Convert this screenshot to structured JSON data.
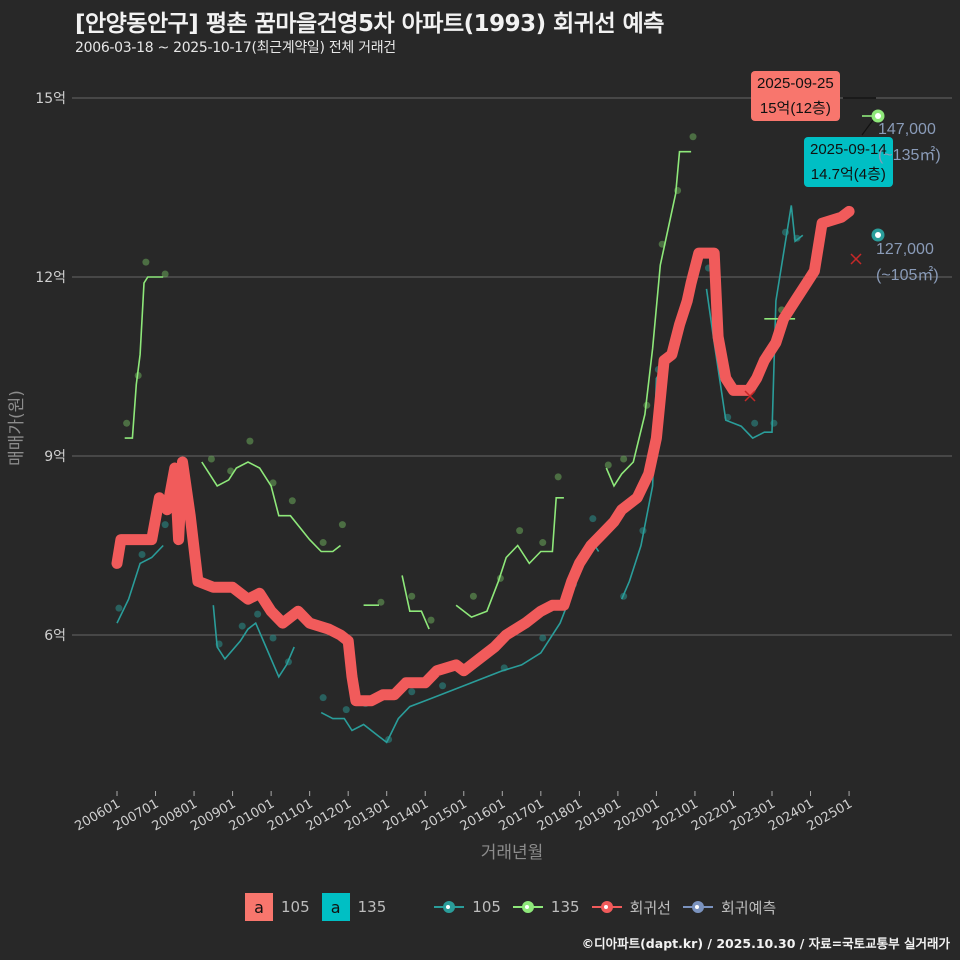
{
  "header": {
    "title": "[안양동안구] 평촌 꿈마을건영5차 아파트(1993) 회귀선 예측",
    "subtitle": "2006-03-18 ~ 2025-10-17(최근계약일) 전체 거래건"
  },
  "axes": {
    "y_title": "매매가(원)",
    "x_title": "거래년월",
    "y_ticks": [
      "15억",
      "12억",
      "9억",
      "6억"
    ],
    "x_ticks": [
      "200601",
      "200701",
      "200801",
      "200901",
      "201001",
      "201101",
      "201201",
      "201301",
      "201401",
      "201501",
      "201601",
      "201701",
      "201801",
      "201901",
      "202001",
      "202101",
      "202201",
      "202301",
      "202401",
      "202501"
    ]
  },
  "callouts": {
    "area105": {
      "date": "2025-09-25",
      "price": "15억(12층)",
      "color": "#f8766d"
    },
    "area135": {
      "date": "2025-09-14",
      "price": "14.7억(4층)",
      "color": "#00bfc4"
    }
  },
  "prediction_labels": {
    "p135": {
      "value": "147,000",
      "area": "(~135㎡)"
    },
    "p105": {
      "value": "127,000",
      "area": "(~105㎡)"
    }
  },
  "legend": {
    "fill": [
      {
        "key": "a",
        "label": "105",
        "color": "#f8766d"
      },
      {
        "key": "a",
        "label": "135",
        "color": "#00bfc4"
      }
    ],
    "lines": [
      {
        "label": "105",
        "color": "#2a9d9a"
      },
      {
        "label": "135",
        "color": "#8ee87a"
      },
      {
        "label": "회귀선",
        "color": "#f15b5b"
      },
      {
        "label": "회귀예측",
        "color": "#7b93bf"
      }
    ]
  },
  "footer": "©디아파트(dapt.kr) / 2025.10.30 / 자료=국토교통부 실거래가",
  "chart_data": {
    "type": "line",
    "title": "[안양동안구] 평촌 꿈마을건영5차 아파트(1993) 회귀선 예측",
    "subtitle": "2006-03-18 ~ 2025-10-17(최근계약일) 전체 거래건",
    "xlabel": "거래년월",
    "ylabel": "매매가(원)",
    "ylim_eok": [
      3.3,
      15.8
    ],
    "y_ticks_eok": [
      6,
      9,
      12,
      15
    ],
    "grid": true,
    "legend_position": "bottom",
    "series": [
      {
        "name": "회귀선",
        "color": "#f15b5b",
        "points_year_eok": [
          [
            2006.0,
            7.2
          ],
          [
            2006.1,
            7.6
          ],
          [
            2006.9,
            7.6
          ],
          [
            2007.1,
            8.3
          ],
          [
            2007.3,
            8.1
          ],
          [
            2007.5,
            8.8
          ],
          [
            2007.6,
            7.6
          ],
          [
            2007.7,
            8.9
          ],
          [
            2007.9,
            8.0
          ],
          [
            2008.1,
            6.9
          ],
          [
            2008.5,
            6.8
          ],
          [
            2009.0,
            6.8
          ],
          [
            2009.4,
            6.6
          ],
          [
            2009.7,
            6.7
          ],
          [
            2010.0,
            6.4
          ],
          [
            2010.3,
            6.2
          ],
          [
            2010.7,
            6.4
          ],
          [
            2011.0,
            6.2
          ],
          [
            2011.5,
            6.1
          ],
          [
            2011.8,
            6.0
          ],
          [
            2012.0,
            5.9
          ],
          [
            2012.1,
            5.3
          ],
          [
            2012.2,
            4.9
          ],
          [
            2012.6,
            4.9
          ],
          [
            2012.9,
            5.0
          ],
          [
            2013.2,
            5.0
          ],
          [
            2013.5,
            5.2
          ],
          [
            2014.0,
            5.2
          ],
          [
            2014.3,
            5.4
          ],
          [
            2014.8,
            5.5
          ],
          [
            2015.0,
            5.4
          ],
          [
            2015.4,
            5.6
          ],
          [
            2015.8,
            5.8
          ],
          [
            2016.1,
            6.0
          ],
          [
            2016.6,
            6.2
          ],
          [
            2017.0,
            6.4
          ],
          [
            2017.3,
            6.5
          ],
          [
            2017.6,
            6.5
          ],
          [
            2017.8,
            6.9
          ],
          [
            2018.0,
            7.2
          ],
          [
            2018.3,
            7.5
          ],
          [
            2018.6,
            7.7
          ],
          [
            2018.9,
            7.9
          ],
          [
            2019.1,
            8.1
          ],
          [
            2019.5,
            8.3
          ],
          [
            2019.8,
            8.7
          ],
          [
            2020.0,
            9.3
          ],
          [
            2020.2,
            10.6
          ],
          [
            2020.4,
            10.7
          ],
          [
            2020.6,
            11.2
          ],
          [
            2020.8,
            11.6
          ],
          [
            2020.9,
            11.9
          ],
          [
            2021.1,
            12.4
          ],
          [
            2021.5,
            12.4
          ],
          [
            2021.6,
            11.0
          ],
          [
            2021.8,
            10.3
          ],
          [
            2022.0,
            10.1
          ],
          [
            2022.4,
            10.1
          ],
          [
            2022.6,
            10.3
          ],
          [
            2022.8,
            10.6
          ],
          [
            2023.1,
            10.9
          ],
          [
            2023.3,
            11.3
          ],
          [
            2023.6,
            11.6
          ],
          [
            2023.9,
            11.9
          ],
          [
            2024.1,
            12.1
          ],
          [
            2024.3,
            12.9
          ],
          [
            2024.8,
            13.0
          ],
          [
            2025.0,
            13.1
          ]
        ]
      },
      {
        "name": "105 (moving avg)",
        "color": "#2a9d9a",
        "points_year_eok": [
          [
            2006.0,
            6.2
          ],
          [
            2006.3,
            6.6
          ],
          [
            2006.6,
            7.2
          ],
          [
            2006.9,
            7.3
          ],
          [
            2007.2,
            7.5
          ],
          [
            2008.5,
            6.5
          ],
          [
            2008.6,
            5.8
          ],
          [
            2008.8,
            5.6
          ],
          [
            2009.2,
            5.9
          ],
          [
            2009.4,
            6.1
          ],
          [
            2009.6,
            6.2
          ],
          [
            2009.8,
            5.9
          ],
          [
            2010.0,
            5.6
          ],
          [
            2010.2,
            5.3
          ],
          [
            2010.4,
            5.5
          ],
          [
            2010.6,
            5.8
          ],
          [
            2011.3,
            4.7
          ],
          [
            2011.6,
            4.6
          ],
          [
            2011.9,
            4.6
          ],
          [
            2012.1,
            4.4
          ],
          [
            2012.4,
            4.5
          ],
          [
            2012.8,
            4.3
          ],
          [
            2013.0,
            4.2
          ],
          [
            2013.3,
            4.6
          ],
          [
            2013.6,
            4.8
          ],
          [
            2014.0,
            4.9
          ],
          [
            2014.4,
            5.0
          ],
          [
            2014.8,
            5.1
          ],
          [
            2015.2,
            5.2
          ],
          [
            2015.6,
            5.3
          ],
          [
            2016.0,
            5.4
          ],
          [
            2016.5,
            5.5
          ],
          [
            2017.0,
            5.7
          ],
          [
            2017.5,
            6.2
          ],
          [
            2017.8,
            6.7
          ],
          [
            2018.0,
            7.2
          ],
          [
            2018.3,
            7.6
          ],
          [
            2018.5,
            7.4
          ],
          [
            2019.1,
            6.6
          ],
          [
            2019.3,
            6.9
          ],
          [
            2019.6,
            7.5
          ],
          [
            2019.9,
            8.5
          ],
          [
            2020.0,
            10.3
          ],
          [
            2020.2,
            10.5
          ],
          [
            2021.3,
            11.8
          ],
          [
            2021.5,
            10.9
          ],
          [
            2021.8,
            9.6
          ],
          [
            2022.2,
            9.5
          ],
          [
            2022.5,
            9.3
          ],
          [
            2022.8,
            9.4
          ],
          [
            2023.0,
            9.4
          ],
          [
            2023.1,
            11.6
          ],
          [
            2023.3,
            12.4
          ],
          [
            2023.5,
            13.2
          ],
          [
            2023.6,
            12.6
          ],
          [
            2023.8,
            12.7
          ]
        ]
      },
      {
        "name": "135 (moving avg)",
        "color": "#8ee87a",
        "points_year_eok": [
          [
            2006.2,
            9.3
          ],
          [
            2006.4,
            9.3
          ],
          [
            2006.5,
            10.2
          ],
          [
            2006.6,
            10.7
          ],
          [
            2006.7,
            11.9
          ],
          [
            2006.8,
            12.0
          ],
          [
            2007.2,
            12.0
          ],
          [
            2008.2,
            8.9
          ],
          [
            2008.4,
            8.7
          ],
          [
            2008.6,
            8.5
          ],
          [
            2008.9,
            8.6
          ],
          [
            2009.1,
            8.8
          ],
          [
            2009.4,
            8.9
          ],
          [
            2009.7,
            8.8
          ],
          [
            2010.0,
            8.5
          ],
          [
            2010.2,
            8.0
          ],
          [
            2010.5,
            8.0
          ],
          [
            2011.0,
            7.6
          ],
          [
            2011.3,
            7.4
          ],
          [
            2011.6,
            7.4
          ],
          [
            2011.8,
            7.5
          ],
          [
            2012.4,
            6.5
          ],
          [
            2012.8,
            6.5
          ],
          [
            2013.4,
            7.0
          ],
          [
            2013.6,
            6.4
          ],
          [
            2013.9,
            6.4
          ],
          [
            2014.1,
            6.1
          ],
          [
            2014.8,
            6.5
          ],
          [
            2015.2,
            6.3
          ],
          [
            2015.6,
            6.4
          ],
          [
            2015.9,
            6.9
          ],
          [
            2016.1,
            7.3
          ],
          [
            2016.4,
            7.5
          ],
          [
            2016.7,
            7.2
          ],
          [
            2017.0,
            7.4
          ],
          [
            2017.3,
            7.4
          ],
          [
            2017.4,
            8.3
          ],
          [
            2017.6,
            8.3
          ],
          [
            2018.7,
            8.8
          ],
          [
            2018.9,
            8.5
          ],
          [
            2019.1,
            8.7
          ],
          [
            2019.4,
            8.9
          ],
          [
            2019.7,
            9.7
          ],
          [
            2019.9,
            10.8
          ],
          [
            2020.1,
            12.2
          ],
          [
            2020.3,
            12.8
          ],
          [
            2020.5,
            13.4
          ],
          [
            2020.6,
            14.1
          ],
          [
            2020.9,
            14.1
          ],
          [
            2022.8,
            11.3
          ],
          [
            2023.2,
            11.3
          ],
          [
            2023.6,
            11.3
          ]
        ]
      },
      {
        "name": "회귀예측",
        "color": "#7b93bf",
        "predictions": [
          {
            "area": "135㎡",
            "value_manwon": 147000
          },
          {
            "area": "105㎡",
            "value_manwon": 127000
          }
        ]
      }
    ],
    "annotations": [
      {
        "date": "2025-09-25",
        "text": "15억(12층)",
        "area": "105"
      },
      {
        "date": "2025-09-14",
        "text": "14.7억(4층)",
        "area": "135"
      }
    ]
  }
}
